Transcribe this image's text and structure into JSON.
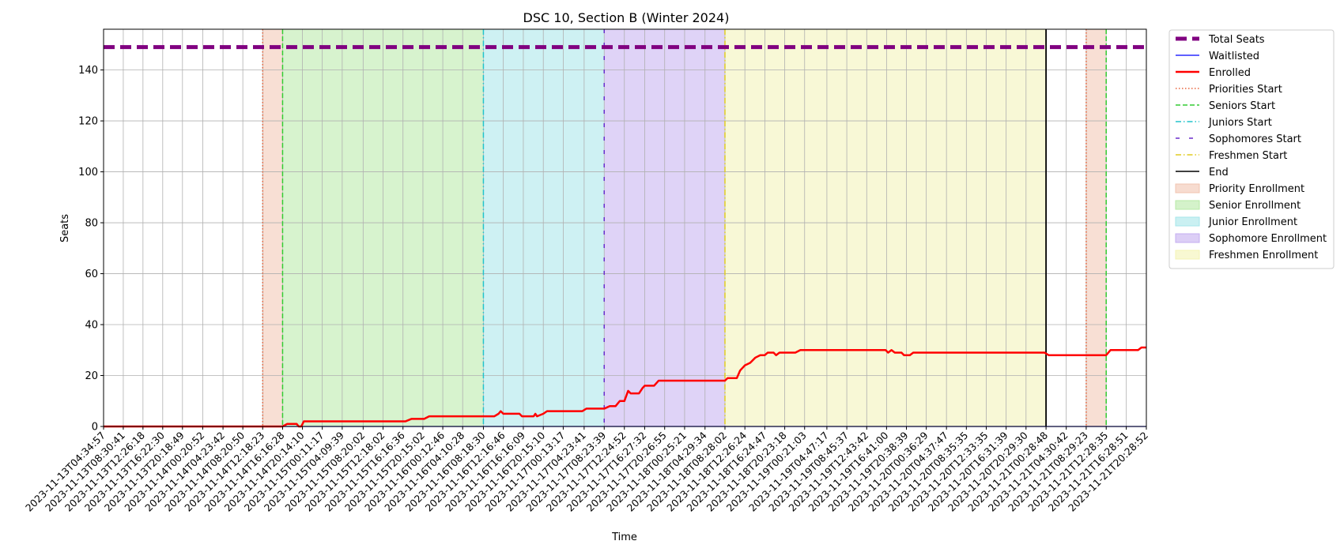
{
  "chart_data": {
    "type": "line",
    "title": "DSC 10, Section B (Winter 2024)",
    "xlabel": "Time",
    "ylabel": "Seats",
    "ylim": [
      0,
      156
    ],
    "yticks": [
      0,
      20,
      40,
      60,
      80,
      100,
      120,
      140
    ],
    "grid": true,
    "legend_position": "outside right, top",
    "x_ticks": [
      "2023-11-13T04:34:57",
      "2023-11-13T08:30:41",
      "2023-11-13T12:26:18",
      "2023-11-13T16:22:30",
      "2023-11-13T20:18:49",
      "2023-11-14T00:20:52",
      "2023-11-14T04:23:42",
      "2023-11-14T08:20:50",
      "2023-11-14T12:18:23",
      "2023-11-14T16:16:28",
      "2023-11-14T20:14:10",
      "2023-11-15T00:11:17",
      "2023-11-15T04:09:39",
      "2023-11-15T08:20:02",
      "2023-11-15T12:18:02",
      "2023-11-15T16:16:36",
      "2023-11-15T20:15:02",
      "2023-11-16T00:12:46",
      "2023-11-16T04:10:28",
      "2023-11-16T08:18:30",
      "2023-11-16T12:16:46",
      "2023-11-16T16:16:09",
      "2023-11-16T20:15:10",
      "2023-11-17T00:13:17",
      "2023-11-17T04:23:41",
      "2023-11-17T08:23:39",
      "2023-11-17T12:24:52",
      "2023-11-17T16:27:32",
      "2023-11-17T20:26:55",
      "2023-11-18T00:25:21",
      "2023-11-18T04:29:34",
      "2023-11-18T08:28:02",
      "2023-11-18T12:26:24",
      "2023-11-18T16:24:47",
      "2023-11-18T20:23:18",
      "2023-11-19T00:21:03",
      "2023-11-19T04:47:17",
      "2023-11-19T08:45:37",
      "2023-11-19T12:43:42",
      "2023-11-19T16:41:00",
      "2023-11-19T20:38:39",
      "2023-11-20T00:36:29",
      "2023-11-20T04:37:47",
      "2023-11-20T08:35:35",
      "2023-11-20T12:33:35",
      "2023-11-20T16:31:39",
      "2023-11-20T20:29:30",
      "2023-11-21T00:28:48",
      "2023-11-21T04:30:42",
      "2023-11-21T08:29:23",
      "2023-11-21T12:28:35",
      "2023-11-21T16:28:51",
      "2023-11-21T20:28:52"
    ],
    "x_range": [
      "2023-11-13T04:34:57",
      "2023-11-21T20:28:52"
    ],
    "series": [
      {
        "name": "Total Seats",
        "color": "#800080",
        "style": "dashed-thick",
        "points": [
          [
            "2023-11-13T04:34:57",
            149
          ],
          [
            "2023-11-21T20:28:52",
            149
          ]
        ]
      },
      {
        "name": "Waitlisted",
        "color": "#0000ff",
        "style": "solid-thin",
        "points": [
          [
            "2023-11-13T04:34:57",
            0
          ],
          [
            "2023-11-21T20:28:52",
            0
          ]
        ]
      },
      {
        "name": "Enrolled",
        "color": "#ff0000",
        "style": "solid-thick",
        "points": [
          [
            "2023-11-13T04:34:57",
            0
          ],
          [
            "2023-11-14T16:16:28",
            0
          ],
          [
            "2023-11-14T17:10:00",
            1
          ],
          [
            "2023-11-14T19:05:00",
            1
          ],
          [
            "2023-11-14T19:30:00",
            0
          ],
          [
            "2023-11-14T20:00:00",
            0
          ],
          [
            "2023-11-14T20:30:00",
            2
          ],
          [
            "2023-11-15T16:45:00",
            2
          ],
          [
            "2023-11-15T18:00:00",
            3
          ],
          [
            "2023-11-15T20:30:00",
            3
          ],
          [
            "2023-11-15T21:30:00",
            4
          ],
          [
            "2023-11-16T10:30:00",
            4
          ],
          [
            "2023-11-16T11:20:00",
            5
          ],
          [
            "2023-11-16T11:45:00",
            6
          ],
          [
            "2023-11-16T12:16:46",
            5
          ],
          [
            "2023-11-16T15:30:00",
            5
          ],
          [
            "2023-11-16T16:00:00",
            4
          ],
          [
            "2023-11-16T18:20:00",
            4
          ],
          [
            "2023-11-16T18:40:00",
            5
          ],
          [
            "2023-11-16T19:00:00",
            4
          ],
          [
            "2023-11-16T20:15:10",
            5
          ],
          [
            "2023-11-16T21:00:00",
            6
          ],
          [
            "2023-11-17T04:00:00",
            6
          ],
          [
            "2023-11-17T04:50:00",
            7
          ],
          [
            "2023-11-17T08:23:39",
            7
          ],
          [
            "2023-11-17T09:30:00",
            8
          ],
          [
            "2023-11-17T10:40:00",
            8
          ],
          [
            "2023-11-17T11:30:00",
            10
          ],
          [
            "2023-11-17T12:24:52",
            10
          ],
          [
            "2023-11-17T13:10:00",
            14
          ],
          [
            "2023-11-17T13:40:00",
            13
          ],
          [
            "2023-11-17T15:20:00",
            13
          ],
          [
            "2023-11-17T16:00:00",
            15
          ],
          [
            "2023-11-17T16:27:32",
            16
          ],
          [
            "2023-11-17T18:20:00",
            16
          ],
          [
            "2023-11-17T19:15:00",
            18
          ],
          [
            "2023-11-18T08:28:02",
            18
          ],
          [
            "2023-11-18T09:00:00",
            19
          ],
          [
            "2023-11-18T10:50:00",
            19
          ],
          [
            "2023-11-18T11:30:00",
            22
          ],
          [
            "2023-11-18T12:26:24",
            24
          ],
          [
            "2023-11-18T13:30:00",
            25
          ],
          [
            "2023-11-18T14:30:00",
            27
          ],
          [
            "2023-11-18T15:30:00",
            28
          ],
          [
            "2023-11-18T16:24:47",
            28
          ],
          [
            "2023-11-18T17:00:00",
            29
          ],
          [
            "2023-11-18T18:10:00",
            29
          ],
          [
            "2023-11-18T18:40:00",
            28
          ],
          [
            "2023-11-18T19:20:00",
            29
          ],
          [
            "2023-11-18T22:30:00",
            29
          ],
          [
            "2023-11-18T23:30:00",
            30
          ],
          [
            "2023-11-19T16:30:00",
            30
          ],
          [
            "2023-11-19T17:00:00",
            29
          ],
          [
            "2023-11-19T17:40:00",
            30
          ],
          [
            "2023-11-19T18:20:00",
            29
          ],
          [
            "2023-11-19T19:40:00",
            29
          ],
          [
            "2023-11-19T20:10:00",
            28
          ],
          [
            "2023-11-19T21:20:00",
            28
          ],
          [
            "2023-11-19T22:00:00",
            29
          ],
          [
            "2023-11-21T00:10:00",
            29
          ],
          [
            "2023-11-21T01:00:00",
            28
          ],
          [
            "2023-11-21T12:28:35",
            28
          ],
          [
            "2023-11-21T13:20:00",
            30
          ],
          [
            "2023-11-21T18:50:00",
            30
          ],
          [
            "2023-11-21T19:30:00",
            31
          ],
          [
            "2023-11-21T20:28:52",
            31
          ]
        ]
      }
    ],
    "phases": [
      {
        "name": "Priority Enrollment",
        "start": "2023-11-14T12:18:23",
        "end": "2023-11-14T16:16:28",
        "color": "#f2c4b0"
      },
      {
        "name": "Senior Enrollment",
        "start": "2023-11-14T16:16:28",
        "end": "2023-11-16T08:18:30",
        "color": "#b7eaa6"
      },
      {
        "name": "Junior Enrollment",
        "start": "2023-11-16T08:18:30",
        "end": "2023-11-17T08:23:39",
        "color": "#a6e6ea"
      },
      {
        "name": "Sophomore Enrollment",
        "start": "2023-11-17T08:23:39",
        "end": "2023-11-18T08:28:02",
        "color": "#c4aef0"
      },
      {
        "name": "Freshmen Enrollment",
        "start": "2023-11-18T08:28:02",
        "end": "2023-11-21T00:28:48",
        "color": "#f3f3b4"
      },
      {
        "name": "Priority Enrollment",
        "start": "2023-11-21T08:29:23",
        "end": "2023-11-21T12:28:35",
        "color": "#f2c4b0"
      }
    ],
    "markers": [
      {
        "name": "Priorities Start",
        "x": "2023-11-14T12:18:23",
        "color": "#e8643c",
        "style": "dotted"
      },
      {
        "name": "Seniors Start",
        "x": "2023-11-14T16:16:28",
        "color": "#33cc33",
        "style": "dashed"
      },
      {
        "name": "Juniors Start",
        "x": "2023-11-16T08:18:30",
        "color": "#22c4cc",
        "style": "dashdot"
      },
      {
        "name": "Sophomores Start",
        "x": "2023-11-17T08:23:39",
        "color": "#6a2ccc",
        "style": "loosedash"
      },
      {
        "name": "Freshmen Start",
        "x": "2023-11-18T08:28:02",
        "color": "#e0cc22",
        "style": "dashdot"
      },
      {
        "name": "End",
        "x": "2023-11-21T00:28:48",
        "color": "#000000",
        "style": "solid"
      },
      {
        "name": "Priorities Start",
        "x": "2023-11-21T08:29:23",
        "color": "#e8643c",
        "style": "dotted"
      },
      {
        "name": "Seniors Start",
        "x": "2023-11-21T12:28:35",
        "color": "#33cc33",
        "style": "dashed"
      }
    ],
    "legend": [
      {
        "label": "Total Seats",
        "kind": "line",
        "color": "#800080",
        "style": "dashed-thick"
      },
      {
        "label": "Waitlisted",
        "kind": "line",
        "color": "#0000ff",
        "style": "solid-thin"
      },
      {
        "label": "Enrolled",
        "kind": "line",
        "color": "#ff0000",
        "style": "solid-thick"
      },
      {
        "label": "Priorities Start",
        "kind": "line",
        "color": "#e8643c",
        "style": "dotted"
      },
      {
        "label": "Seniors Start",
        "kind": "line",
        "color": "#33cc33",
        "style": "dashed"
      },
      {
        "label": "Juniors Start",
        "kind": "line",
        "color": "#22c4cc",
        "style": "dashdot"
      },
      {
        "label": "Sophomores Start",
        "kind": "line",
        "color": "#6a2ccc",
        "style": "loosedash"
      },
      {
        "label": "Freshmen Start",
        "kind": "line",
        "color": "#e0cc22",
        "style": "dashdot"
      },
      {
        "label": "End",
        "kind": "line",
        "color": "#000000",
        "style": "solid"
      },
      {
        "label": "Priority Enrollment",
        "kind": "patch",
        "color": "#f2c4b0"
      },
      {
        "label": "Senior Enrollment",
        "kind": "patch",
        "color": "#b7eaa6"
      },
      {
        "label": "Junior Enrollment",
        "kind": "patch",
        "color": "#a6e6ea"
      },
      {
        "label": "Sophomore Enrollment",
        "kind": "patch",
        "color": "#c4aef0"
      },
      {
        "label": "Freshmen Enrollment",
        "kind": "patch",
        "color": "#f3f3b4"
      }
    ]
  }
}
